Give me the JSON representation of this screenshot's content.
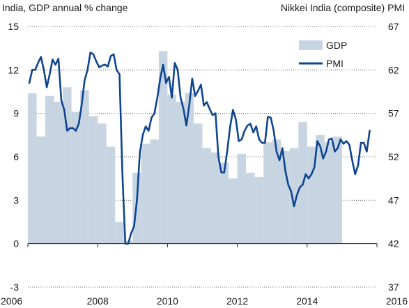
{
  "chart_data": {
    "type": "bar+line",
    "title": "",
    "ylabel_left": "India, GDP annual % change",
    "ylabel_right": "Nikkei   India (composite) PMI",
    "x_ticks": [
      "2006",
      "2008",
      "2010",
      "2012",
      "2014",
      "2016"
    ],
    "y_left_ticks": [
      "-3",
      "0",
      "3",
      "6",
      "9",
      "12",
      "15"
    ],
    "y_right_ticks": [
      "37",
      "42",
      "47",
      "52",
      "57",
      "62",
      "67"
    ],
    "ylim_left": [
      -3,
      15
    ],
    "ylim_right": [
      37,
      67
    ],
    "legend": {
      "position": "top-right",
      "items": [
        "GDP",
        "PMI"
      ]
    },
    "colors": {
      "gdp": "#c7d5e2",
      "pmi": "#0e4590",
      "grid": "#333333"
    },
    "series": [
      {
        "name": "GDP",
        "kind": "bar",
        "frequency": "quarterly",
        "start": 2006.0,
        "values": [
          10.4,
          7.4,
          10.2,
          9.8,
          10.8,
          9.1,
          10.6,
          8.8,
          8.3,
          6.7,
          1.5,
          0.2,
          4.9,
          6.9,
          7.2,
          13.3,
          10.3,
          9.8,
          10.4,
          8.3,
          6.6,
          6.3,
          5.6,
          4.5,
          6.2,
          4.9,
          4.6,
          7.0,
          7.2,
          6.4,
          6.6,
          8.4,
          6.7,
          7.5,
          7.0,
          7.4
        ]
      },
      {
        "name": "PMI",
        "kind": "line",
        "frequency": "monthly",
        "start": 2006.0,
        "values": [
          60.5,
          62.0,
          62.0,
          62.8,
          63.5,
          62.0,
          60.0,
          61.5,
          63.2,
          62.6,
          63.3,
          58.5,
          57.4,
          55.0,
          55.3,
          55.3,
          55.0,
          55.8,
          58.0,
          60.8,
          62.0,
          64.0,
          63.8,
          63.0,
          62.3,
          62.5,
          62.6,
          62.4,
          63.6,
          63.8,
          62.0,
          61.5,
          50.0,
          42.0,
          42.0,
          43.2,
          44.0,
          47.0,
          52.5,
          54.5,
          55.5,
          55.0,
          56.5,
          57.0,
          58.8,
          61.0,
          62.6,
          60.5,
          61.2,
          58.8,
          62.8,
          62.0,
          58.8,
          57.5,
          55.6,
          58.0,
          61.0,
          59.0,
          59.6,
          60.3,
          57.9,
          58.3,
          57.5,
          56.8,
          57.0,
          52.0,
          50.2,
          50.2,
          52.6,
          55.4,
          57.4,
          56.3,
          53.8,
          54.0,
          55.0,
          55.6,
          55.8,
          54.8,
          55.5,
          54.0,
          53.6,
          53.6,
          56.6,
          56.5,
          55.0,
          52.6,
          51.6,
          53.0,
          50.4,
          48.8,
          48.0,
          46.3,
          47.6,
          48.5,
          48.8,
          50.0,
          49.5,
          50.0,
          50.8,
          53.8,
          53.2,
          51.8,
          52.6,
          54.0,
          54.1,
          52.6,
          53.0,
          54.0,
          53.5,
          53.8,
          53.4,
          51.6,
          50.0,
          51.0,
          53.6,
          53.6,
          52.6,
          55.0
        ]
      }
    ]
  }
}
